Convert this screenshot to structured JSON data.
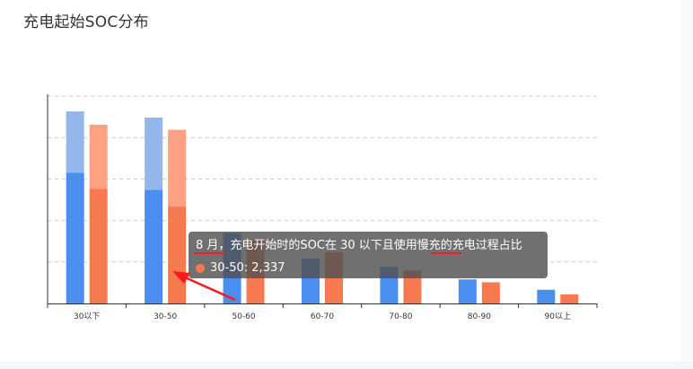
{
  "title": "充电起始SOC分布",
  "colors": {
    "series_a": "#4a8ff0",
    "series_a_light": "#93b7ea",
    "series_b": "#f7794f",
    "series_b_light": "#ffa083"
  },
  "chart_data": {
    "type": "bar",
    "stacked": true,
    "categories": [
      "30以下",
      "30-50",
      "50-60",
      "60-70",
      "70-80",
      "80-90",
      "90以上"
    ],
    "series": [
      {
        "stack": "a",
        "color": "#4a8ff0",
        "values": [
          3150,
          2740,
          1700,
          1080,
          880,
          580,
          330
        ]
      },
      {
        "stack": "a",
        "color": "#93b7ea",
        "values": [
          1480,
          1740,
          0,
          0,
          0,
          0,
          0
        ]
      },
      {
        "stack": "b",
        "color": "#f7794f",
        "values": [
          2760,
          2337,
          1550,
          1240,
          790,
          510,
          220
        ]
      },
      {
        "stack": "b",
        "color": "#ffa083",
        "values": [
          1550,
          1850,
          0,
          0,
          0,
          0,
          0
        ]
      }
    ],
    "ylim": [
      0,
      5000
    ],
    "grid": true,
    "axis_y_labels_visible": false
  },
  "tooltip": {
    "title": "8 月，充电开始时的SOC在 30 以下且使用慢充的充电过程占比",
    "entry": "30-50: 2,337",
    "dot_color": "#f7794f"
  },
  "annotations": {
    "arrow_color": "#ff1a1a"
  }
}
